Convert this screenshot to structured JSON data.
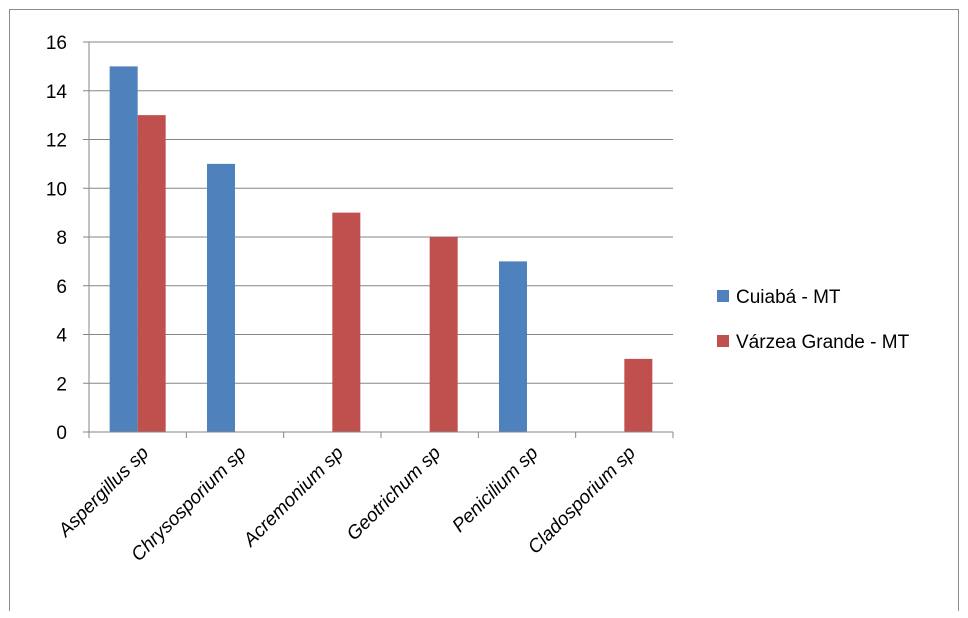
{
  "chart_data": {
    "type": "bar",
    "categories": [
      "Aspergillus sp",
      "Chrysosporium sp",
      "Acremonium sp",
      "Geotrichum sp",
      "Penicilium sp",
      "Cladosporium sp"
    ],
    "series": [
      {
        "name": "Cuiabá - MT",
        "color": "#4F81BD",
        "values": [
          15,
          11,
          0,
          0,
          7,
          0
        ]
      },
      {
        "name": "Várzea Grande - MT",
        "color": "#C0504D",
        "values": [
          13,
          0,
          9,
          8,
          0,
          3
        ]
      }
    ],
    "title": "",
    "xlabel": "",
    "ylabel": "",
    "ylim": [
      0,
      16
    ],
    "yticks": [
      0,
      2,
      4,
      6,
      8,
      10,
      12,
      14,
      16
    ],
    "grid": true,
    "legend_position": "right",
    "category_label_style": "italic, rotated"
  }
}
